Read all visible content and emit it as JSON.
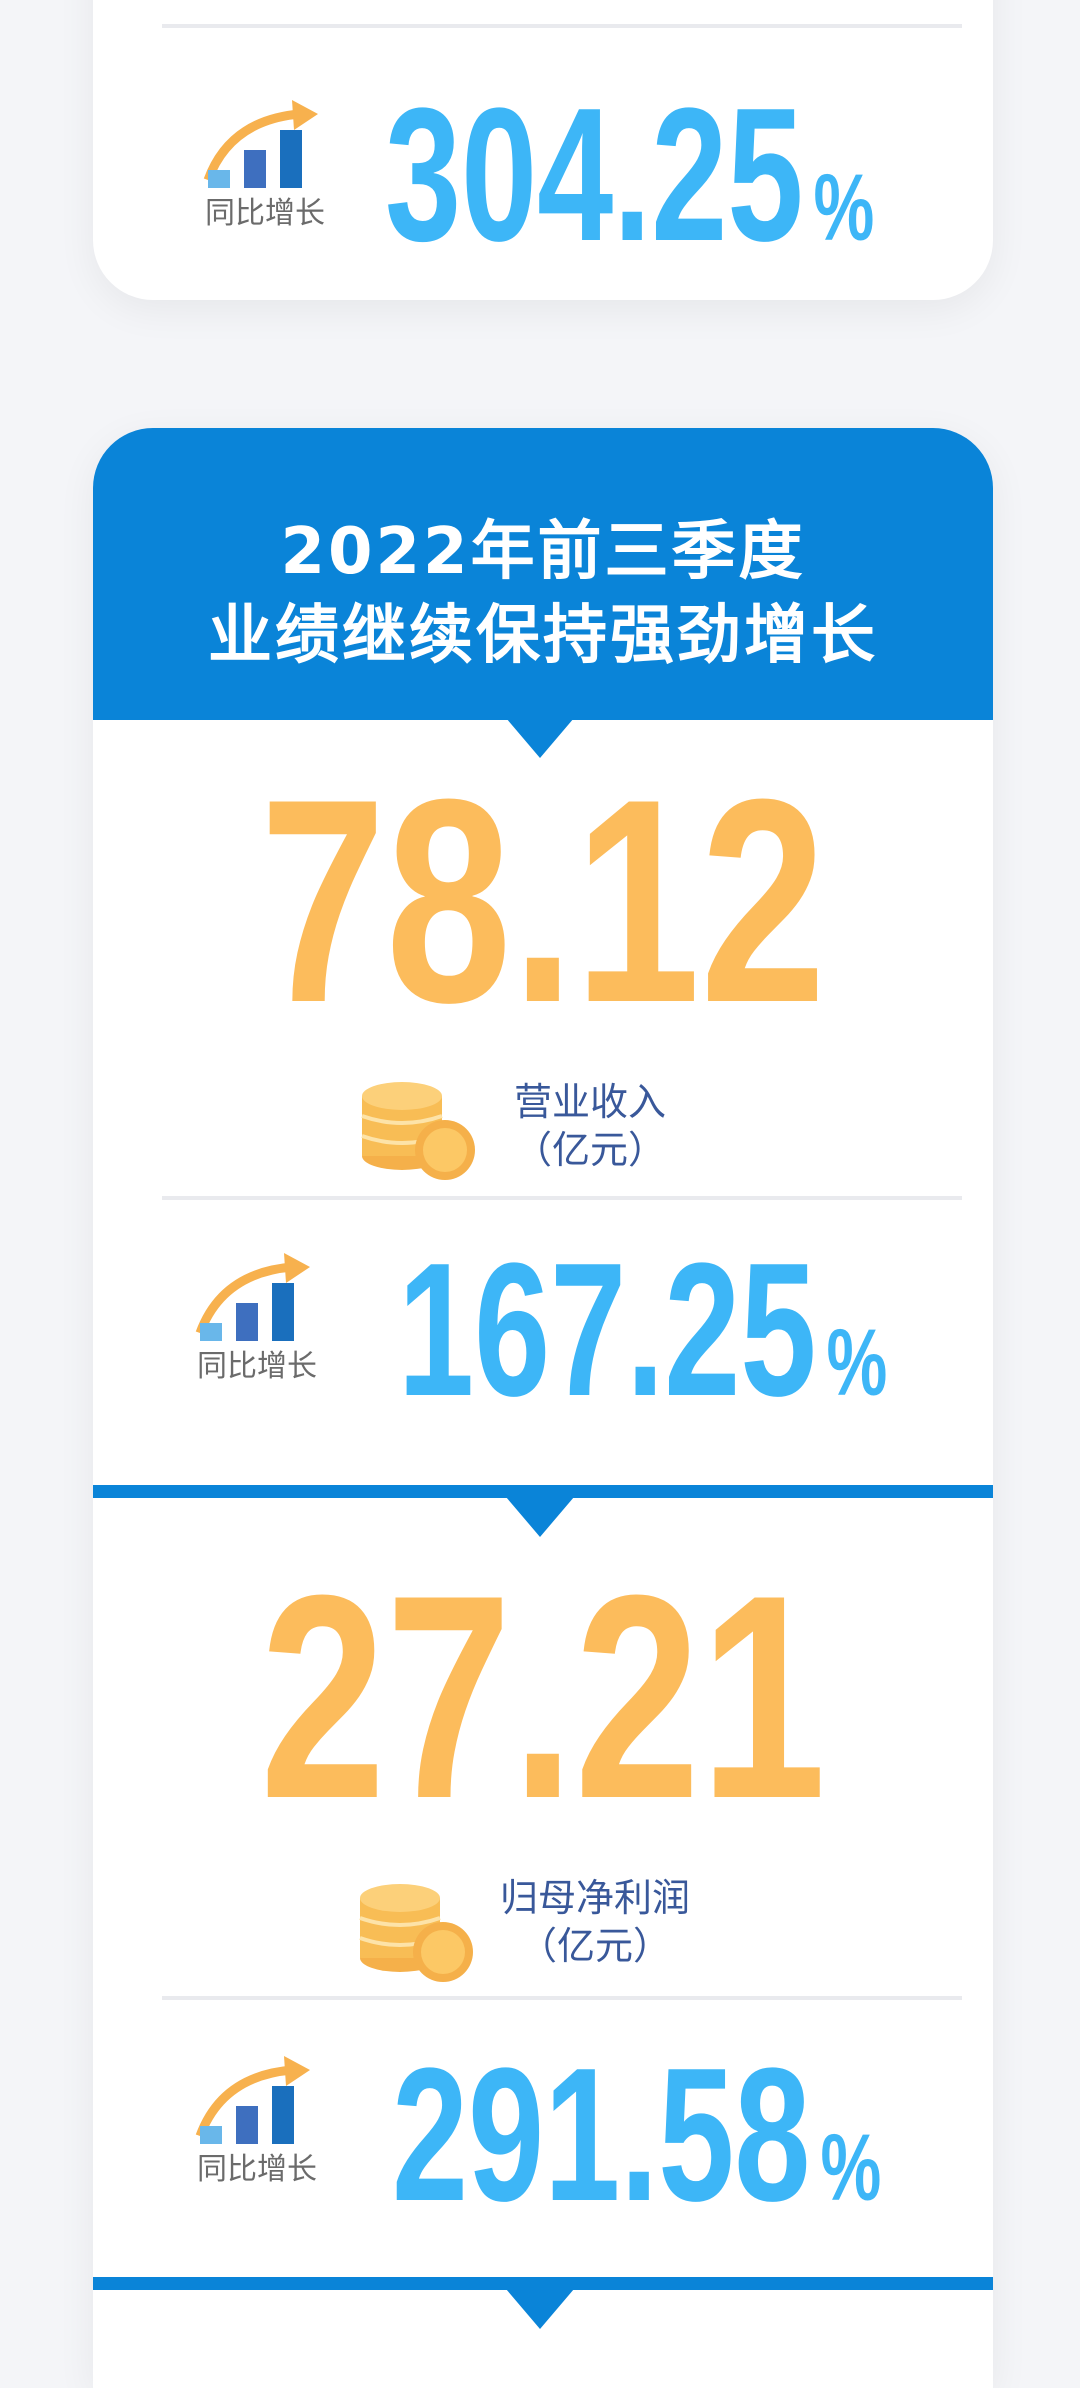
{
  "top_card": {
    "growth_label": "同比增长",
    "growth_value": "304.25",
    "percent": "%"
  },
  "section": {
    "title_line1": "2022年前三季度",
    "title_line2": "业绩继续保持强劲增长",
    "metrics": [
      {
        "value": "78.12",
        "label": "营业收入",
        "unit": "（亿元）",
        "growth_label": "同比增长",
        "growth_value": "167.25",
        "percent": "%"
      },
      {
        "value": "27.21",
        "label": "归母净利润",
        "unit": "（亿元）",
        "growth_label": "同比增长",
        "growth_value": "291.58",
        "percent": "%"
      }
    ]
  },
  "colors": {
    "header_blue": "#0a84d8",
    "value_orange": "#fcbc5c",
    "growth_blue": "#3db6f7",
    "label_navy": "#39589a"
  },
  "icons": [
    "growth-chart-icon",
    "coin-stack-icon"
  ]
}
